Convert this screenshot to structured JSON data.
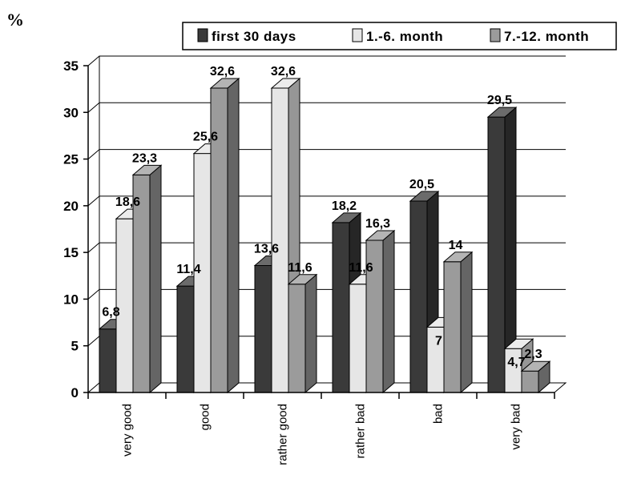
{
  "chart_data": {
    "type": "bar",
    "ylabel": "%",
    "ylim": [
      0,
      35
    ],
    "yticks": [
      "0",
      "5",
      "10",
      "15",
      "20",
      "25",
      "30",
      "35"
    ],
    "grid": true,
    "legend_position": "top",
    "categories": [
      "very good",
      "good",
      "rather good",
      "rather bad",
      "bad",
      "very bad"
    ],
    "series": [
      {
        "name": "first 30 days",
        "color": "#3a3a3a",
        "values": [
          6.8,
          11.4,
          13.6,
          18.2,
          20.5,
          29.5
        ],
        "labels": [
          "6,8",
          "11,4",
          "13,6",
          "18,2",
          "20,5",
          "29,5"
        ]
      },
      {
        "name": "1.-6. month",
        "color": "#e6e6e6",
        "values": [
          18.6,
          25.6,
          32.6,
          11.6,
          7,
          4.7
        ],
        "labels": [
          "18,6",
          "25,6",
          "32,6",
          "11,6",
          "7",
          "4,7"
        ]
      },
      {
        "name": "7.-12. month",
        "color": "#9b9b9b",
        "values": [
          23.3,
          32.6,
          11.6,
          16.3,
          14,
          2.3
        ],
        "labels": [
          "23,3",
          "32,6",
          "11,6",
          "16,3",
          "14",
          "2,3"
        ]
      }
    ]
  }
}
